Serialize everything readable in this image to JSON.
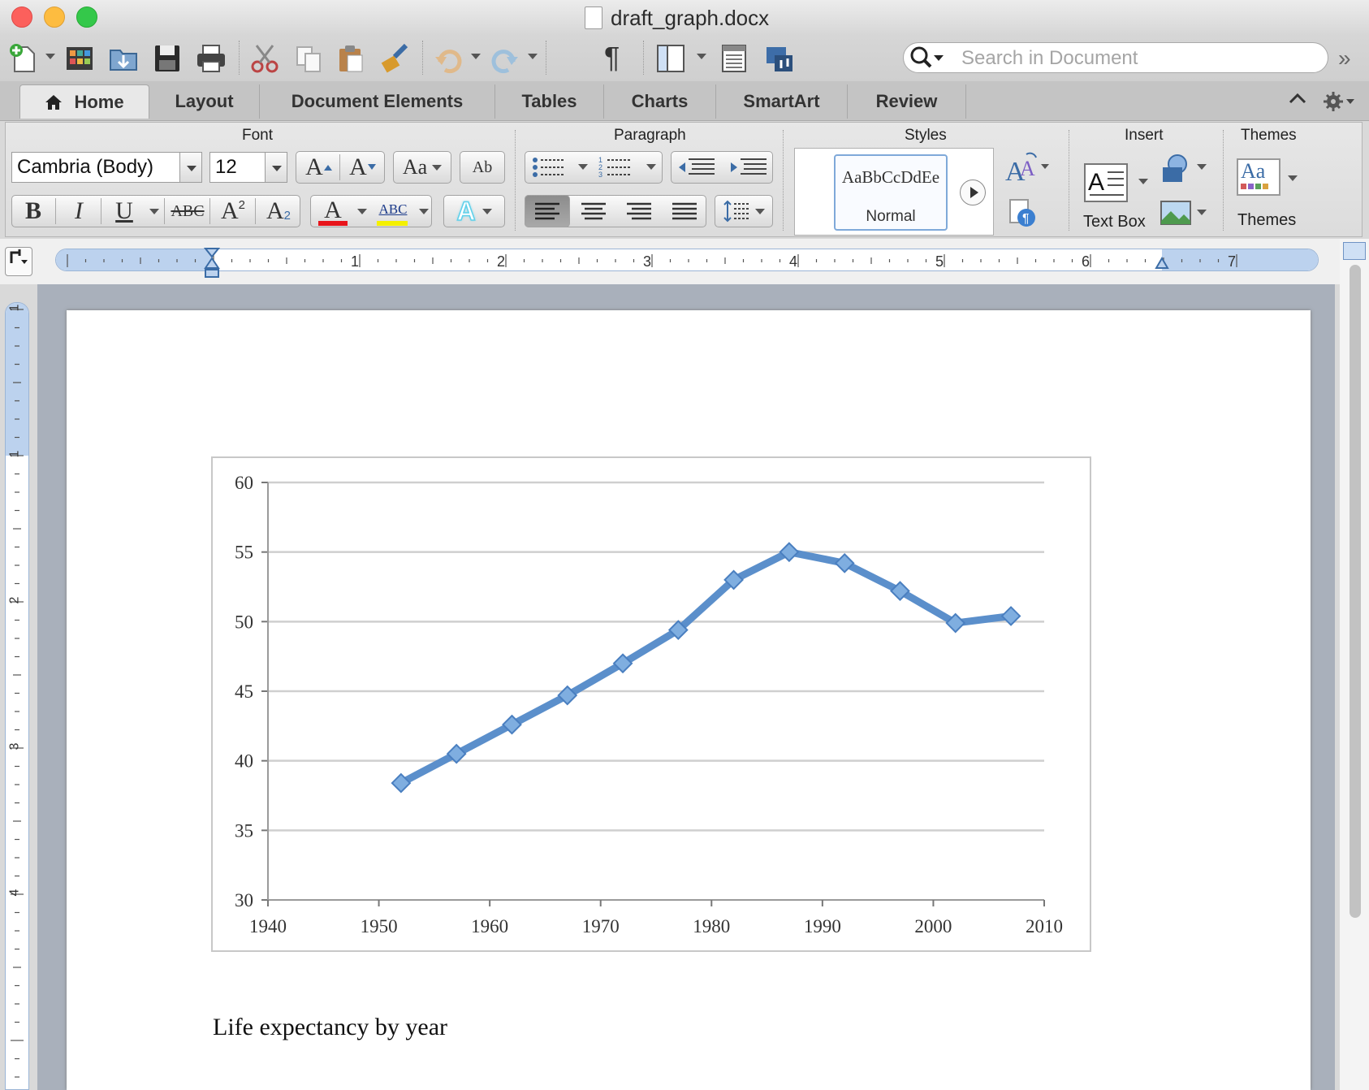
{
  "window": {
    "title": "draft_graph.docx"
  },
  "toolbar": {
    "icons": [
      "new-document-icon",
      "template-gallery-icon",
      "open-folder-icon",
      "save-icon",
      "print-icon",
      "cut-icon",
      "copy-icon",
      "paste-icon",
      "format-painter-icon",
      "undo-icon",
      "redo-icon",
      "show-formatting-icon",
      "sidebar-icon",
      "view-icon",
      "media-browser-icon"
    ],
    "pilcrow": "¶",
    "search_placeholder": "Search in Document",
    "overflow": "»"
  },
  "tabs": [
    {
      "label": "Home",
      "active": true
    },
    {
      "label": "Layout"
    },
    {
      "label": "Document Elements"
    },
    {
      "label": "Tables"
    },
    {
      "label": "Charts"
    },
    {
      "label": "SmartArt"
    },
    {
      "label": "Review"
    }
  ],
  "ribbon": {
    "groups": {
      "font": "Font",
      "paragraph": "Paragraph",
      "styles": "Styles",
      "insert": "Insert",
      "themes": "Themes"
    },
    "font_name": "Cambria (Body)",
    "font_size": "12",
    "grow_font": "A",
    "shrink_font": "A",
    "change_case": "Aa",
    "clear_format": "Ab",
    "bold": "B",
    "italic": "I",
    "underline": "U",
    "strikethrough": "ABC",
    "superscript": "A",
    "superscript_mark": "2",
    "subscript": "A",
    "subscript_mark": "2",
    "font_color_glyph": "A",
    "highlight_glyph": "ABC",
    "text_effects_glyph": "A",
    "font_color": "#e8141b",
    "highlight_color": "#f4f000",
    "text_effects_color": "#5fd0ea",
    "style_sample": "AaBbCcDdEe",
    "style_name": "Normal",
    "text_box_label": "Text Box",
    "themes_label": "Themes",
    "themes_sample": "Aa"
  },
  "ruler": {
    "numbers": [
      "1",
      "2",
      "3",
      "4",
      "5",
      "6",
      "7"
    ],
    "vertical_numbers": [
      "1",
      "1",
      "2",
      "3",
      "4"
    ]
  },
  "document": {
    "caption": "Life expectancy by year"
  },
  "chart_data": {
    "type": "line",
    "xlim": [
      1940,
      2010
    ],
    "ylim": [
      30,
      60
    ],
    "x_ticks": [
      1940,
      1950,
      1960,
      1970,
      1980,
      1990,
      2000,
      2010
    ],
    "y_ticks": [
      30,
      35,
      40,
      45,
      50,
      55,
      60
    ],
    "grid": true,
    "legend": "none",
    "series": [
      {
        "color": "#5b8fcb",
        "x": [
          1952,
          1957,
          1962,
          1967,
          1972,
          1977,
          1982,
          1987,
          1992,
          1997,
          2002,
          2007
        ],
        "y": [
          38.4,
          40.5,
          42.6,
          44.7,
          47.0,
          49.4,
          53.0,
          55.0,
          54.2,
          52.2,
          49.9,
          50.4
        ]
      }
    ]
  }
}
